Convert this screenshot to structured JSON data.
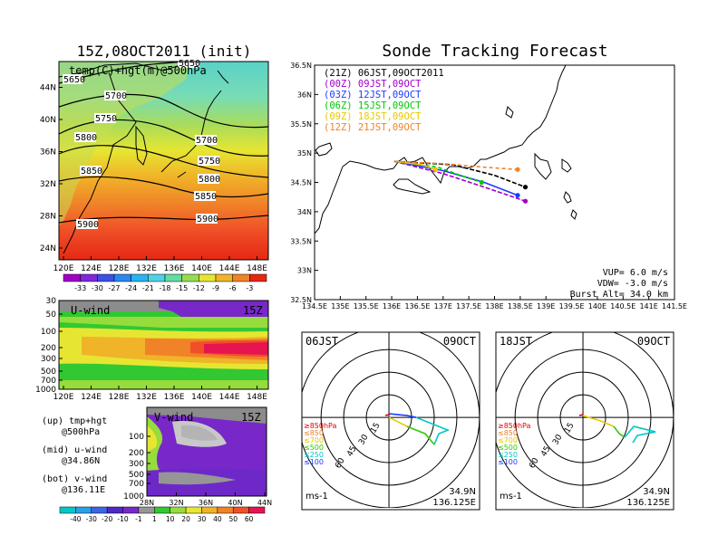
{
  "left_title": "15Z,08OCT2011 (init)",
  "right_title": "Sonde Tracking Forecast",
  "map_panel": {
    "label": "temp(C)+hgt(m)@500hPa",
    "x_ticks": [
      "120E",
      "124E",
      "128E",
      "132E",
      "136E",
      "140E",
      "144E",
      "148E"
    ],
    "y_ticks": [
      "24N",
      "28N",
      "32N",
      "36N",
      "40N",
      "44N"
    ],
    "contour_labels": [
      "5650",
      "5650",
      "5700",
      "5700",
      "5750",
      "5750",
      "5800",
      "5800",
      "5850",
      "5850",
      "5900",
      "5900"
    ],
    "colorbar": [
      "-33",
      "-30",
      "-27",
      "-24",
      "-21",
      "-18",
      "-15",
      "-12",
      "-9",
      "-6",
      "-3"
    ]
  },
  "u_panel": {
    "label": "U-wind",
    "time": "15Z",
    "y_ticks": [
      "30",
      "50",
      "100",
      "200",
      "300",
      "500",
      "700",
      "1000"
    ],
    "x_ticks": [
      "120E",
      "124E",
      "128E",
      "132E",
      "136E",
      "140E",
      "144E",
      "148E"
    ]
  },
  "v_panel": {
    "label": "V-wind",
    "time": "15Z",
    "y_ticks": [
      "100",
      "200",
      "300",
      "500",
      "700",
      "1000"
    ],
    "x_ticks": [
      "28N",
      "32N",
      "36N",
      "40N",
      "44N"
    ],
    "colorbar": [
      "-40",
      "-30",
      "-20",
      "-10",
      "-1",
      "1",
      "10",
      "20",
      "30",
      "40",
      "50",
      "60"
    ]
  },
  "notes": {
    "up": "(up) tmp+hgt",
    "up2": "@500hPa",
    "mid": "(mid) u-wind",
    "mid2": "@34.86N",
    "bot": "(bot) v-wind",
    "bot2": "@136.11E"
  },
  "track_panel": {
    "legend": [
      {
        "text": "(21Z) 06JST,09OCT2011",
        "color": "#000000"
      },
      {
        "text": "(00Z) 09JST,09OCT",
        "color": "#a000c8"
      },
      {
        "text": "(03Z) 12JST,09OCT",
        "color": "#1e3cff"
      },
      {
        "text": "(06Z) 15JST,09OCT",
        "color": "#00c800"
      },
      {
        "text": "(09Z) 18JST,09OCT",
        "color": "#e6c800"
      },
      {
        "text": "(12Z) 21JST,09OCT",
        "color": "#f08228"
      }
    ],
    "x_ticks": [
      "134.5E",
      "135E",
      "135.5E",
      "136E",
      "136.5E",
      "137E",
      "137.5E",
      "138E",
      "138.5E",
      "139E",
      "139.5E",
      "140E",
      "140.5E",
      "141E",
      "141.5E"
    ],
    "y_ticks": [
      "32.5N",
      "33N",
      "33.5N",
      "34N",
      "34.5N",
      "35N",
      "35.5N",
      "36N",
      "36.5N"
    ],
    "vup": "VUP=  6.0  m/s",
    "vdw": "VDW= -3.0  m/s",
    "burst": "Burst Alt=  34.0  km"
  },
  "hodo1": {
    "title": "06JST",
    "date": "09OCT",
    "lat": "34.9N",
    "lon": "136.125E",
    "unit": "ms-1"
  },
  "hodo2": {
    "title": "18JST",
    "date": "09OCT",
    "lat": "34.9N",
    "lon": "136.125E",
    "unit": "ms-1"
  },
  "hodo_rings": [
    "15",
    "30",
    "45",
    "60"
  ],
  "hodo_levels": [
    {
      "text": "≥850hPa",
      "color": "#e60000"
    },
    {
      "text": "≤850",
      "color": "#f08228"
    },
    {
      "text": "≤700",
      "color": "#e6c800"
    },
    {
      "text": "≤500",
      "color": "#32c800"
    },
    {
      "text": "≤250",
      "color": "#00c8c8"
    },
    {
      "text": "≤100",
      "color": "#1e3cff"
    }
  ],
  "chart_data": {
    "type": "line",
    "title": "Sonde Tracking Forecast",
    "xlabel": "",
    "ylabel": "",
    "xlim": [
      134.5,
      141.5
    ],
    "ylim": [
      32.5,
      36.5
    ],
    "series": [
      {
        "name": "(21Z) 06JST,09OCT2011",
        "lon": [
          136.05,
          137.2,
          138.0,
          138.6
        ],
        "lat": [
          34.86,
          34.8,
          34.62,
          34.42
        ]
      },
      {
        "name": "(00Z) 09JST,09OCT",
        "lon": [
          136.05,
          137.0,
          137.8,
          138.6
        ],
        "lat": [
          34.86,
          34.65,
          34.42,
          34.18
        ]
      },
      {
        "name": "(03Z) 12JST,09OCT",
        "lon": [
          136.05,
          137.0,
          137.8,
          138.45
        ],
        "lat": [
          34.86,
          34.7,
          34.5,
          34.28
        ]
      },
      {
        "name": "(06Z) 15JST,09OCT",
        "lon": [
          136.05,
          136.9,
          137.4,
          137.75
        ],
        "lat": [
          34.86,
          34.76,
          34.6,
          34.5
        ]
      },
      {
        "name": "(09Z) 18JST,09OCT",
        "lon": [
          136.05,
          136.6,
          136.85
        ],
        "lat": [
          34.86,
          34.8,
          34.72
        ]
      },
      {
        "name": "(12Z) 21JST,09OCT",
        "lon": [
          136.05,
          137.0,
          137.8,
          138.45
        ],
        "lat": [
          34.86,
          34.82,
          34.76,
          34.72
        ]
      }
    ]
  }
}
